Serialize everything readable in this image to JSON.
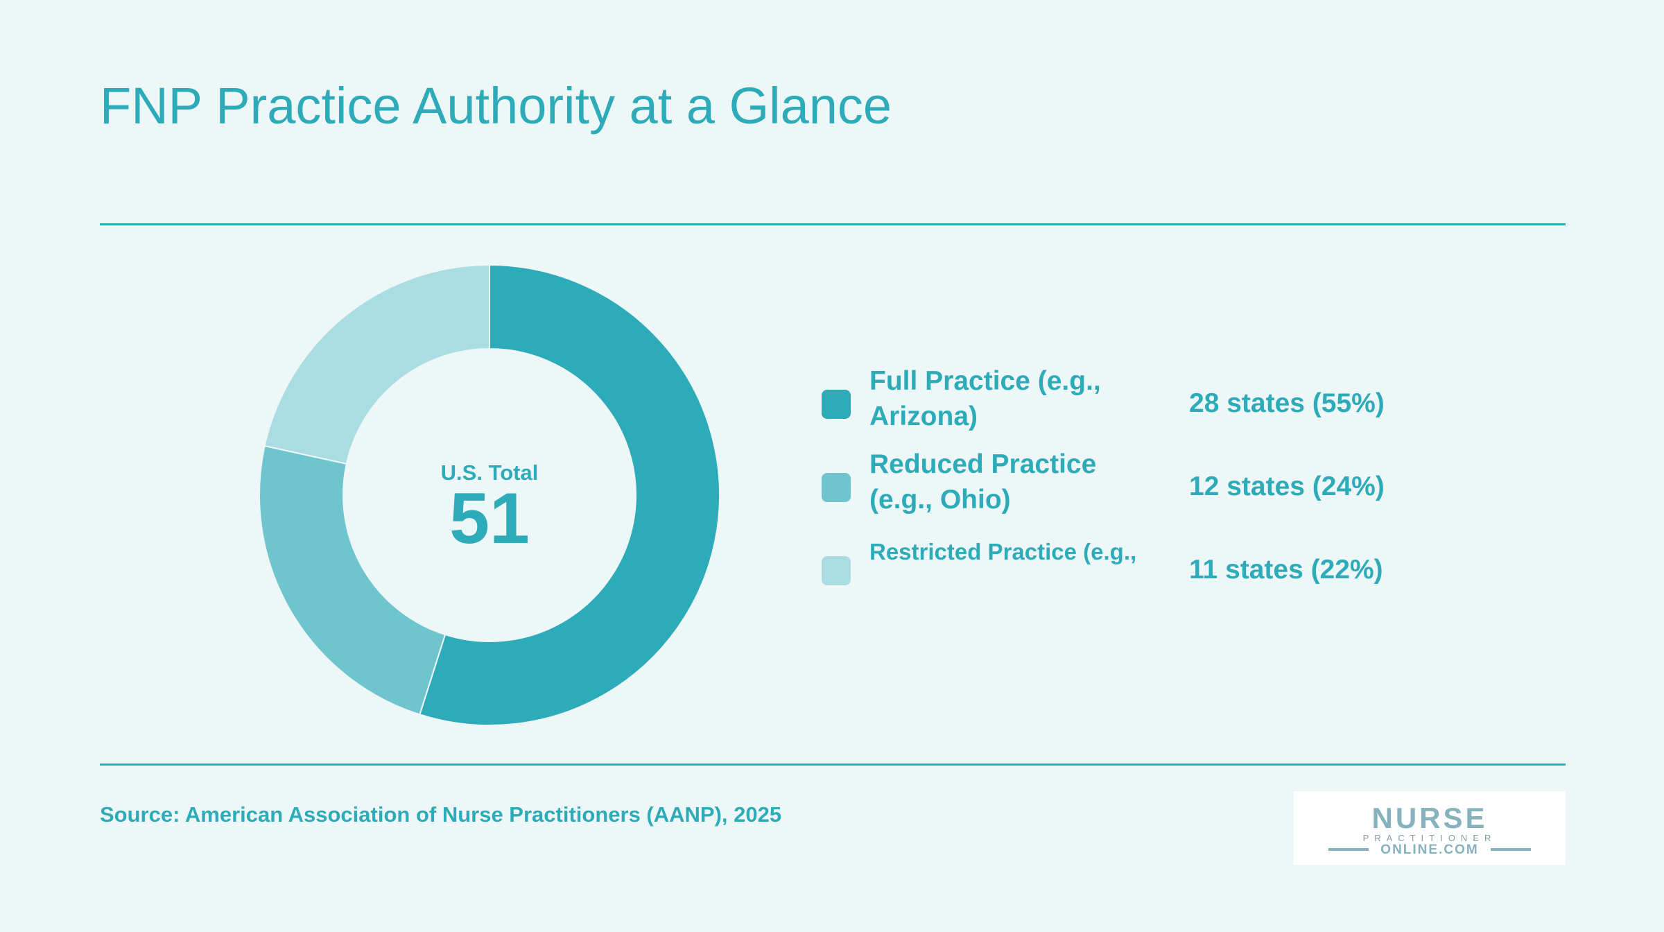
{
  "title": "FNP Practice Authority at a Glance",
  "colors": {
    "background": "#edf7f8",
    "accent": "#2eabb8",
    "full": "#2eabb8",
    "reduced": "#6fc5ce",
    "restricted": "#aadde2"
  },
  "center": {
    "label": "U.S. Total",
    "value": "51"
  },
  "chart_data": {
    "type": "pie",
    "style": "donut",
    "categories": [
      "Full Practice (e.g., Arizona)",
      "Reduced Practice (e.g., Ohio)",
      "Restricted Practice (e.g.,"
    ],
    "values": [
      28,
      12,
      11
    ],
    "total": 51
  },
  "legend": [
    {
      "name": "Full Practice (e.g., Arizona)",
      "value": "28 states (55%)",
      "color": "#2eabb8"
    },
    {
      "name": "Reduced Practice (e.g., Ohio)",
      "value": "12 states (24%)",
      "color": "#6fc5ce"
    },
    {
      "name": "Restricted Practice (e.g.,",
      "value": "11 states (22%)",
      "color": "#aadde2"
    }
  ],
  "source": "Source: American Association of Nurse Practitioners (AANP), 2025",
  "logo": {
    "line1": "NURSE",
    "line2": "PRACTITIONER",
    "line3": "ONLINE.COM"
  }
}
